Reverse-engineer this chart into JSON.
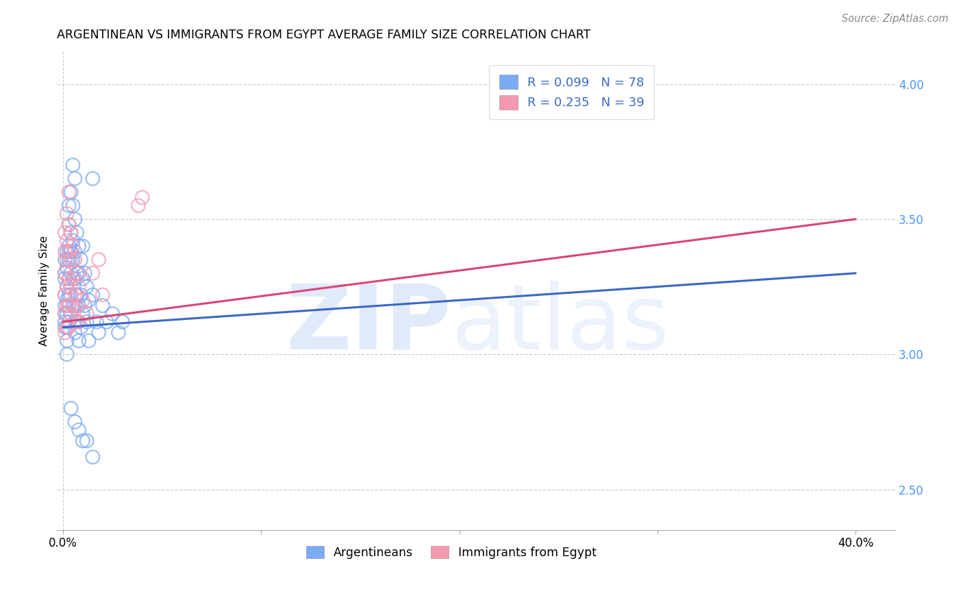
{
  "title": "ARGENTINEAN VS IMMIGRANTS FROM EGYPT AVERAGE FAMILY SIZE CORRELATION CHART",
  "source": "Source: ZipAtlas.com",
  "ylabel": "Average Family Size",
  "blue_color": "#7aabf5",
  "pink_color": "#f598b0",
  "blue_line_color": "#3a68c8",
  "pink_line_color": "#d94477",
  "right_tick_color": "#4d94ff",
  "blue_scatter": [
    [
      0.001,
      3.3
    ],
    [
      0.001,
      3.35
    ],
    [
      0.001,
      3.28
    ],
    [
      0.001,
      3.22
    ],
    [
      0.001,
      3.18
    ],
    [
      0.001,
      3.15
    ],
    [
      0.001,
      3.12
    ],
    [
      0.001,
      3.1
    ],
    [
      0.002,
      3.38
    ],
    [
      0.002,
      3.32
    ],
    [
      0.002,
      3.25
    ],
    [
      0.002,
      3.2
    ],
    [
      0.002,
      3.15
    ],
    [
      0.002,
      3.1
    ],
    [
      0.002,
      3.05
    ],
    [
      0.002,
      3.0
    ],
    [
      0.003,
      3.55
    ],
    [
      0.003,
      3.48
    ],
    [
      0.003,
      3.4
    ],
    [
      0.003,
      3.35
    ],
    [
      0.003,
      3.28
    ],
    [
      0.003,
      3.22
    ],
    [
      0.003,
      3.18
    ],
    [
      0.003,
      3.12
    ],
    [
      0.004,
      3.6
    ],
    [
      0.004,
      3.45
    ],
    [
      0.004,
      3.38
    ],
    [
      0.004,
      3.3
    ],
    [
      0.004,
      3.22
    ],
    [
      0.004,
      3.15
    ],
    [
      0.005,
      3.7
    ],
    [
      0.005,
      3.55
    ],
    [
      0.005,
      3.42
    ],
    [
      0.005,
      3.35
    ],
    [
      0.005,
      3.28
    ],
    [
      0.005,
      3.18
    ],
    [
      0.006,
      3.65
    ],
    [
      0.006,
      3.5
    ],
    [
      0.006,
      3.38
    ],
    [
      0.006,
      3.28
    ],
    [
      0.006,
      3.18
    ],
    [
      0.006,
      3.08
    ],
    [
      0.007,
      3.45
    ],
    [
      0.007,
      3.3
    ],
    [
      0.007,
      3.22
    ],
    [
      0.007,
      3.12
    ],
    [
      0.008,
      3.4
    ],
    [
      0.008,
      3.3
    ],
    [
      0.008,
      3.18
    ],
    [
      0.008,
      3.05
    ],
    [
      0.009,
      3.35
    ],
    [
      0.009,
      3.22
    ],
    [
      0.009,
      3.1
    ],
    [
      0.01,
      3.4
    ],
    [
      0.01,
      3.28
    ],
    [
      0.01,
      3.15
    ],
    [
      0.011,
      3.3
    ],
    [
      0.011,
      3.18
    ],
    [
      0.012,
      3.25
    ],
    [
      0.012,
      3.12
    ],
    [
      0.013,
      3.2
    ],
    [
      0.013,
      3.05
    ],
    [
      0.015,
      3.65
    ],
    [
      0.015,
      3.22
    ],
    [
      0.017,
      3.12
    ],
    [
      0.018,
      3.08
    ],
    [
      0.02,
      3.18
    ],
    [
      0.022,
      3.12
    ],
    [
      0.025,
      3.15
    ],
    [
      0.028,
      3.08
    ],
    [
      0.03,
      3.12
    ],
    [
      0.012,
      2.68
    ],
    [
      0.015,
      2.62
    ],
    [
      0.008,
      2.72
    ],
    [
      0.01,
      2.68
    ],
    [
      0.006,
      2.75
    ],
    [
      0.004,
      2.8
    ]
  ],
  "pink_scatter": [
    [
      0.001,
      3.45
    ],
    [
      0.001,
      3.38
    ],
    [
      0.001,
      3.3
    ],
    [
      0.001,
      3.22
    ],
    [
      0.001,
      3.15
    ],
    [
      0.001,
      3.08
    ],
    [
      0.002,
      3.52
    ],
    [
      0.002,
      3.42
    ],
    [
      0.002,
      3.35
    ],
    [
      0.002,
      3.25
    ],
    [
      0.002,
      3.18
    ],
    [
      0.002,
      3.1
    ],
    [
      0.003,
      3.6
    ],
    [
      0.003,
      3.48
    ],
    [
      0.003,
      3.38
    ],
    [
      0.003,
      3.28
    ],
    [
      0.003,
      3.18
    ],
    [
      0.003,
      3.1
    ],
    [
      0.004,
      3.45
    ],
    [
      0.004,
      3.35
    ],
    [
      0.004,
      3.25
    ],
    [
      0.004,
      3.15
    ],
    [
      0.005,
      3.4
    ],
    [
      0.005,
      3.28
    ],
    [
      0.005,
      3.18
    ],
    [
      0.006,
      3.35
    ],
    [
      0.006,
      3.22
    ],
    [
      0.006,
      3.12
    ],
    [
      0.007,
      3.3
    ],
    [
      0.007,
      3.18
    ],
    [
      0.008,
      3.25
    ],
    [
      0.008,
      3.12
    ],
    [
      0.01,
      3.2
    ],
    [
      0.012,
      3.15
    ],
    [
      0.015,
      3.3
    ],
    [
      0.018,
      3.35
    ],
    [
      0.02,
      3.22
    ],
    [
      0.038,
      3.55
    ],
    [
      0.04,
      3.58
    ]
  ],
  "blue_line_x": [
    0.0,
    0.4
  ],
  "blue_line_y": [
    3.1,
    3.3
  ],
  "pink_line_x": [
    0.0,
    0.4
  ],
  "pink_line_y": [
    3.12,
    3.5
  ],
  "xlim": [
    -0.003,
    0.42
  ],
  "ylim": [
    2.35,
    4.12
  ],
  "right_yticks": [
    2.5,
    3.0,
    3.5,
    4.0
  ],
  "dpi": 100,
  "fig_width": 14.06,
  "fig_height": 8.92
}
